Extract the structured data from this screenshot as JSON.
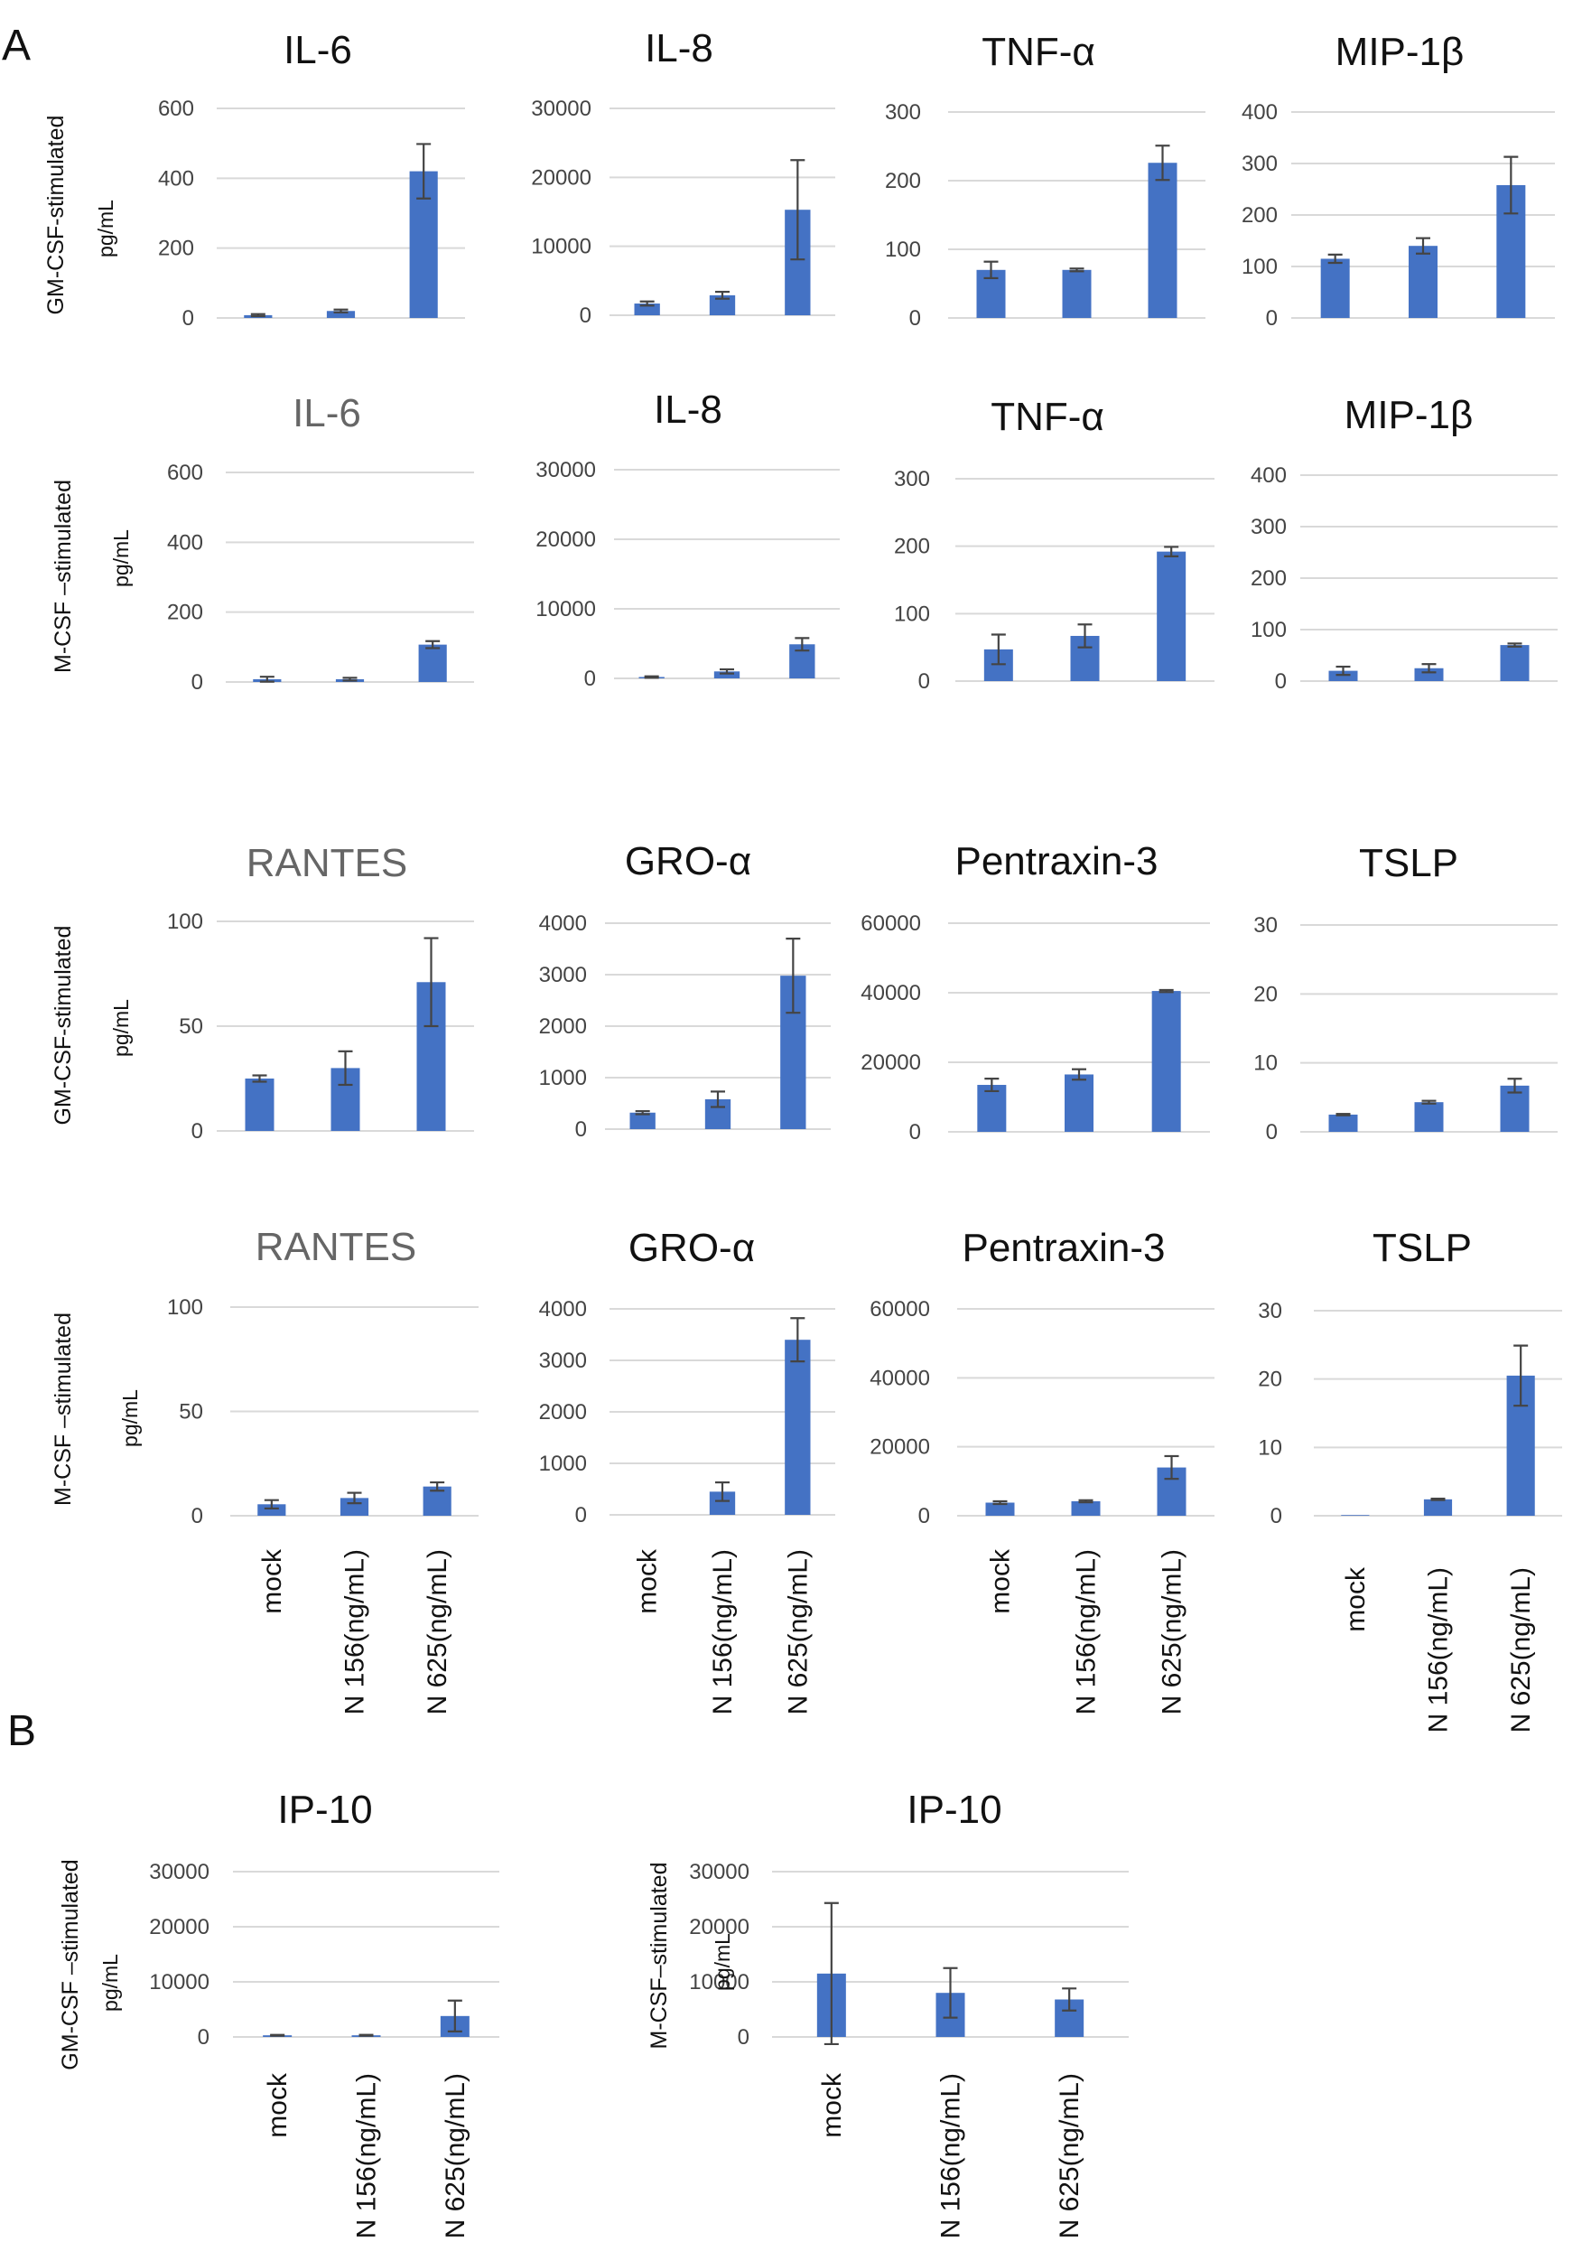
{
  "panels": {
    "a": "A",
    "b": "B"
  },
  "colors": {
    "bar": "#4472c4",
    "grid": "#d9d9d9",
    "error": "#444444"
  },
  "categories": [
    "mock",
    "N 156(ng/mL)",
    "N 625(ng/mL)"
  ],
  "chart_data": [
    {
      "type": "bar",
      "title": "IL-6",
      "row_label": "GM-CSF-stimulated",
      "ylabel": "pg/mL",
      "ylim": [
        0,
        600
      ],
      "yticks": [
        0,
        200,
        400,
        600
      ],
      "tick_labels": [
        "0",
        "200",
        "400",
        "600"
      ],
      "categories": [
        "mock",
        "N 156(ng/mL)",
        "N 625(ng/mL)"
      ],
      "values": [
        8,
        20,
        420
      ],
      "errors": [
        3,
        4,
        78
      ]
    },
    {
      "type": "bar",
      "title": "IL-8",
      "ylim": [
        0,
        30000
      ],
      "yticks": [
        0,
        10000,
        20000,
        30000
      ],
      "tick_labels": [
        "0",
        "10000",
        "20000",
        "30000"
      ],
      "categories": [
        "mock",
        "N 156(ng/mL)",
        "N 625(ng/mL)"
      ],
      "values": [
        1700,
        2900,
        15300
      ],
      "errors": [
        300,
        500,
        7200
      ]
    },
    {
      "type": "bar",
      "title": "TNF-α",
      "ylim": [
        0,
        300
      ],
      "yticks": [
        0,
        100,
        200,
        300
      ],
      "tick_labels": [
        "0",
        "100",
        "200",
        "300"
      ],
      "categories": [
        "mock",
        "N 156(ng/mL)",
        "N 625(ng/mL)"
      ],
      "values": [
        70,
        70,
        226
      ],
      "errors": [
        12,
        2,
        25
      ]
    },
    {
      "type": "bar",
      "title": "MIP-1β",
      "ylim": [
        0,
        400
      ],
      "yticks": [
        0,
        100,
        200,
        300,
        400
      ],
      "tick_labels": [
        "0",
        "100",
        "200",
        "300",
        "400"
      ],
      "categories": [
        "mock",
        "N 156(ng/mL)",
        "N 625(ng/mL)"
      ],
      "values": [
        115,
        140,
        258
      ],
      "errors": [
        8,
        15,
        55
      ]
    },
    {
      "type": "bar",
      "title": "IL-6",
      "row_label": "M-CSF –stimulated",
      "ylabel": "pg/mL",
      "ylim": [
        0,
        600
      ],
      "yticks": [
        0,
        200,
        400,
        600
      ],
      "tick_labels": [
        "0",
        "200",
        "400",
        "600"
      ],
      "categories": [
        "mock",
        "N 156(ng/mL)",
        "N 625(ng/mL)"
      ],
      "values": [
        8,
        8,
        107
      ],
      "errors": [
        7,
        4,
        10
      ]
    },
    {
      "type": "bar",
      "title": "IL-8",
      "ylim": [
        0,
        30000
      ],
      "yticks": [
        0,
        10000,
        20000,
        30000
      ],
      "tick_labels": [
        "0",
        "10000",
        "20000",
        "30000"
      ],
      "categories": [
        "mock",
        "N 156(ng/mL)",
        "N 625(ng/mL)"
      ],
      "values": [
        200,
        1000,
        4900
      ],
      "errors": [
        100,
        300,
        900
      ]
    },
    {
      "type": "bar",
      "title": "TNF-α",
      "ylim": [
        0,
        300
      ],
      "yticks": [
        0,
        100,
        200,
        300
      ],
      "tick_labels": [
        "0",
        "100",
        "200",
        "300"
      ],
      "categories": [
        "mock",
        "N 156(ng/mL)",
        "N 625(ng/mL)"
      ],
      "values": [
        47,
        67,
        192
      ],
      "errors": [
        22,
        17,
        7
      ]
    },
    {
      "type": "bar",
      "title": "MIP-1β",
      "ylim": [
        0,
        400
      ],
      "yticks": [
        0,
        100,
        200,
        300,
        400
      ],
      "tick_labels": [
        "0",
        "100",
        "200",
        "300",
        "400"
      ],
      "categories": [
        "mock",
        "N 156(ng/mL)",
        "N 625(ng/mL)"
      ],
      "values": [
        20,
        25,
        70
      ],
      "errors": [
        8,
        8,
        3
      ]
    },
    {
      "type": "bar",
      "title": "RANTES",
      "row_label": "GM-CSF-stimulated",
      "ylabel": "pg/mL",
      "ylim": [
        0,
        100
      ],
      "yticks": [
        0,
        50,
        100
      ],
      "tick_labels": [
        "0",
        "50",
        "100"
      ],
      "categories": [
        "mock",
        "N 156(ng/mL)",
        "N 625(ng/mL)"
      ],
      "values": [
        25,
        30,
        71
      ],
      "errors": [
        1.5,
        8,
        21
      ]
    },
    {
      "type": "bar",
      "title": "GRO-α",
      "ylim": [
        0,
        4000
      ],
      "yticks": [
        0,
        1000,
        2000,
        3000,
        4000
      ],
      "tick_labels": [
        "0",
        "1000",
        "2000",
        "3000",
        "4000"
      ],
      "categories": [
        "mock",
        "N 156(ng/mL)",
        "N 625(ng/mL)"
      ],
      "values": [
        320,
        580,
        2980
      ],
      "errors": [
        30,
        150,
        720
      ]
    },
    {
      "type": "bar",
      "title": "Pentraxin-3",
      "ylim": [
        0,
        60000
      ],
      "yticks": [
        0,
        20000,
        40000,
        60000
      ],
      "tick_labels": [
        "0",
        "20000",
        "40000",
        "60000"
      ],
      "categories": [
        "mock",
        "N 156(ng/mL)",
        "N 625(ng/mL)"
      ],
      "values": [
        13500,
        16500,
        40500
      ],
      "errors": [
        1800,
        1500,
        300
      ]
    },
    {
      "type": "bar",
      "title": "TSLP",
      "ylim": [
        0,
        30
      ],
      "yticks": [
        0,
        10,
        20,
        30
      ],
      "tick_labels": [
        "0",
        "10",
        "20",
        "30"
      ],
      "categories": [
        "mock",
        "N 156(ng/mL)",
        "N 625(ng/mL)"
      ],
      "values": [
        2.5,
        4.3,
        6.7
      ],
      "errors": [
        0.1,
        0.2,
        1
      ]
    },
    {
      "type": "bar",
      "title": "RANTES",
      "row_label": "M-CSF –stimulated",
      "ylabel": "pg/mL",
      "ylim": [
        0,
        100
      ],
      "yticks": [
        0,
        50,
        100
      ],
      "tick_labels": [
        "0",
        "50",
        "100"
      ],
      "categories": [
        "mock",
        "N 156(ng/mL)",
        "N 625(ng/mL)"
      ],
      "values": [
        5.5,
        8.5,
        14
      ],
      "errors": [
        2,
        2.5,
        2
      ]
    },
    {
      "type": "bar",
      "title": "GRO-α",
      "ylim": [
        0,
        4000
      ],
      "yticks": [
        0,
        1000,
        2000,
        3000,
        4000
      ],
      "tick_labels": [
        "0",
        "1000",
        "2000",
        "3000",
        "4000"
      ],
      "categories": [
        "mock",
        "N 156(ng/mL)",
        "N 625(ng/mL)"
      ],
      "values": [
        0,
        450,
        3400
      ],
      "errors": [
        0,
        180,
        420
      ]
    },
    {
      "type": "bar",
      "title": "Pentraxin-3",
      "ylim": [
        0,
        60000
      ],
      "yticks": [
        0,
        20000,
        40000,
        60000
      ],
      "tick_labels": [
        "0",
        "20000",
        "40000",
        "60000"
      ],
      "categories": [
        "mock",
        "N 156(ng/mL)",
        "N 625(ng/mL)"
      ],
      "values": [
        3800,
        4200,
        14000
      ],
      "errors": [
        400,
        300,
        3300
      ]
    },
    {
      "type": "bar",
      "title": "TSLP",
      "ylim": [
        0,
        30
      ],
      "yticks": [
        0,
        10,
        20,
        30
      ],
      "tick_labels": [
        "0",
        "10",
        "20",
        "30"
      ],
      "categories": [
        "mock",
        "N 156(ng/mL)",
        "N 625(ng/mL)"
      ],
      "values": [
        0.1,
        2.4,
        20.5
      ],
      "errors": [
        0,
        0.1,
        4.4
      ]
    },
    {
      "type": "bar",
      "title": "IP-10",
      "row_label": "GM-CSF –stimulated",
      "ylabel": "pg/mL",
      "ylim": [
        0,
        30000
      ],
      "yticks": [
        0,
        10000,
        20000,
        30000
      ],
      "tick_labels": [
        "0",
        "10000",
        "20000",
        "30000"
      ],
      "categories": [
        "mock",
        "N 156(ng/mL)",
        "N 625(ng/mL)"
      ],
      "values": [
        300,
        300,
        3800
      ],
      "errors": [
        80,
        80,
        2800
      ]
    },
    {
      "type": "bar",
      "title": "IP-10",
      "row_label": "M-CSF–stimulated",
      "ylabel": "pg/mL",
      "ylim": [
        0,
        30000
      ],
      "yticks": [
        0,
        10000,
        20000,
        30000
      ],
      "tick_labels": [
        "0",
        "10000",
        "20000",
        "30000"
      ],
      "categories": [
        "mock",
        "N 156(ng/mL)",
        "N 625(ng/mL)"
      ],
      "values": [
        11500,
        8000,
        6800
      ],
      "errors": [
        12800,
        4500,
        2000
      ]
    }
  ]
}
